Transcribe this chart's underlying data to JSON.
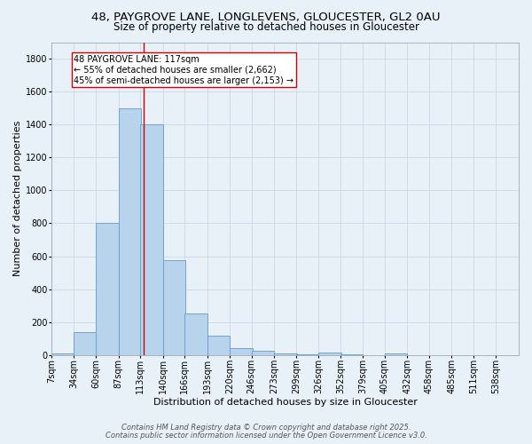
{
  "title_line1": "48, PAYGROVE LANE, LONGLEVENS, GLOUCESTER, GL2 0AU",
  "title_line2": "Size of property relative to detached houses in Gloucester",
  "xlabel": "Distribution of detached houses by size in Gloucester",
  "ylabel": "Number of detached properties",
  "bin_labels": [
    "7sqm",
    "34sqm",
    "60sqm",
    "87sqm",
    "113sqm",
    "140sqm",
    "166sqm",
    "193sqm",
    "220sqm",
    "246sqm",
    "273sqm",
    "299sqm",
    "326sqm",
    "352sqm",
    "379sqm",
    "405sqm",
    "432sqm",
    "458sqm",
    "485sqm",
    "511sqm",
    "538sqm"
  ],
  "bin_edges": [
    7,
    34,
    60,
    87,
    113,
    140,
    166,
    193,
    220,
    246,
    273,
    299,
    326,
    352,
    379,
    405,
    432,
    458,
    485,
    511,
    538
  ],
  "bar_heights": [
    10,
    140,
    800,
    1500,
    1400,
    575,
    250,
    115,
    40,
    27,
    10,
    4,
    15,
    2,
    0,
    8,
    0,
    0,
    0,
    0,
    0
  ],
  "bar_color": "#b8d4ec",
  "bar_edge_color": "#6699cc",
  "property_value": 117,
  "vline_color": "#cc0000",
  "annotation_text": "48 PAYGROVE LANE: 117sqm\n← 55% of detached houses are smaller (2,662)\n45% of semi-detached houses are larger (2,153) →",
  "annotation_box_color": "#ffffff",
  "annotation_border_color": "#cc0000",
  "ylim": [
    0,
    1900
  ],
  "yticks": [
    0,
    200,
    400,
    600,
    800,
    1000,
    1200,
    1400,
    1600,
    1800
  ],
  "grid_color": "#c8d8e8",
  "bg_color": "#e8f0f8",
  "footer_line1": "Contains HM Land Registry data © Crown copyright and database right 2025.",
  "footer_line2": "Contains public sector information licensed under the Open Government Licence v3.0.",
  "title_fontsize": 9.5,
  "subtitle_fontsize": 8.5,
  "axis_label_fontsize": 8,
  "tick_fontsize": 7,
  "footer_fontsize": 6,
  "annotation_fontsize": 7
}
